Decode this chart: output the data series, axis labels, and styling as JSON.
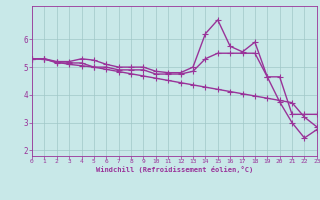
{
  "xlabel": "Windchill (Refroidissement éolien,°C)",
  "xlim": [
    0,
    23
  ],
  "ylim": [
    1.8,
    7.2
  ],
  "yticks": [
    2,
    3,
    4,
    5,
    6
  ],
  "xticks": [
    0,
    1,
    2,
    3,
    4,
    5,
    6,
    7,
    8,
    9,
    10,
    11,
    12,
    13,
    14,
    15,
    16,
    17,
    18,
    19,
    20,
    21,
    22,
    23
  ],
  "background_color": "#c8e8e8",
  "grid_color": "#a0c8c8",
  "line_color": "#993399",
  "line_width": 1.0,
  "marker": "+",
  "marker_size": 4,
  "series": [
    [
      5.3,
      5.3,
      5.2,
      5.2,
      5.3,
      5.25,
      5.1,
      5.0,
      5.0,
      5.0,
      4.85,
      4.8,
      4.8,
      5.0,
      6.2,
      6.7,
      5.75,
      5.55,
      5.9,
      4.65,
      3.75,
      3.0,
      2.45,
      2.75
    ],
    [
      5.3,
      5.3,
      5.15,
      5.15,
      5.15,
      5.0,
      5.0,
      4.9,
      4.9,
      4.9,
      4.75,
      4.75,
      4.75,
      4.85,
      5.3,
      5.5,
      5.5,
      5.5,
      5.5,
      4.65,
      4.65,
      3.3,
      3.3,
      3.3
    ],
    [
      5.3,
      5.28,
      5.18,
      5.1,
      5.05,
      5.0,
      4.92,
      4.84,
      4.76,
      4.68,
      4.6,
      4.52,
      4.44,
      4.36,
      4.28,
      4.2,
      4.12,
      4.04,
      3.96,
      3.88,
      3.8,
      3.72,
      3.2,
      2.85
    ]
  ]
}
